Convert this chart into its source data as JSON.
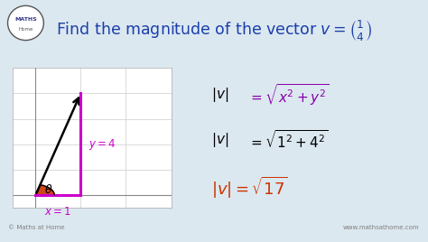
{
  "bg_color": "#dce8f0",
  "title_color": "#1a3faa",
  "title_fontsize": 12.5,
  "grid_color": "#cccccc",
  "magenta_color": "#cc00cc",
  "box_color": "#1a3a8a",
  "footer_left": "© Maths at Home",
  "footer_right": "www.mathsathome.com"
}
